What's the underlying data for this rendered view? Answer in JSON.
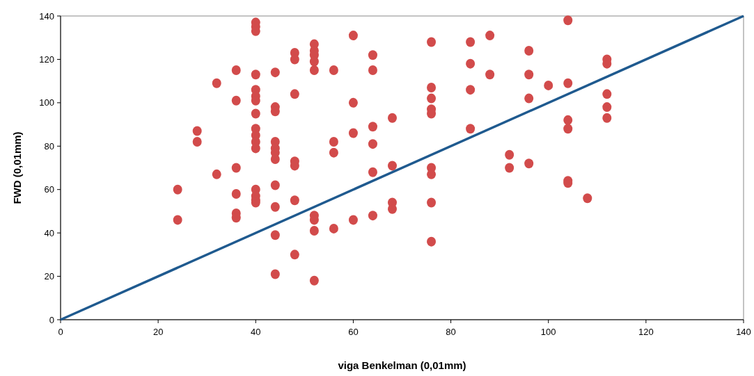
{
  "chart_data": {
    "type": "scatter",
    "xlabel": "viga Benkelman (0,01mm)",
    "ylabel": "FWD (0,01mm)",
    "xlim": [
      0,
      140
    ],
    "ylim": [
      0,
      140
    ],
    "xticks": [
      0,
      20,
      40,
      60,
      80,
      100,
      120,
      140
    ],
    "yticks": [
      0,
      20,
      40,
      60,
      80,
      100,
      120,
      140
    ],
    "grid": false,
    "series": [
      {
        "marker": "circle",
        "color": "#d24b4b",
        "x": [
          24,
          24,
          28,
          28,
          32,
          32,
          36,
          36,
          36,
          36,
          36,
          36,
          40,
          40,
          40,
          40,
          40,
          40,
          40,
          40,
          40,
          40,
          40,
          40,
          40,
          40,
          40,
          40,
          44,
          44,
          44,
          44,
          44,
          44,
          44,
          44,
          44,
          44,
          44,
          48,
          48,
          48,
          48,
          48,
          48,
          48,
          52,
          52,
          52,
          52,
          52,
          52,
          52,
          52,
          52,
          56,
          56,
          56,
          56,
          60,
          60,
          60,
          60,
          64,
          64,
          64,
          64,
          64,
          64,
          68,
          68,
          68,
          68,
          76,
          76,
          76,
          76,
          76,
          76,
          76,
          76,
          76,
          84,
          84,
          84,
          84,
          88,
          88,
          92,
          92,
          96,
          96,
          96,
          96,
          100,
          104,
          104,
          104,
          104,
          104,
          104,
          108,
          112,
          112,
          112,
          112,
          112
        ],
        "values": [
          60,
          46,
          87,
          82,
          109,
          67,
          115,
          101,
          70,
          58,
          49,
          47,
          137,
          135,
          133,
          113,
          106,
          103,
          101,
          95,
          88,
          85,
          82,
          79,
          60,
          57,
          55,
          54,
          114,
          98,
          96,
          82,
          79,
          77,
          74,
          62,
          52,
          39,
          21,
          123,
          120,
          104,
          73,
          71,
          55,
          30,
          127,
          124,
          122,
          119,
          115,
          48,
          46,
          41,
          18,
          115,
          82,
          77,
          42,
          131,
          100,
          86,
          46,
          122,
          115,
          89,
          81,
          68,
          48,
          93,
          71,
          54,
          51,
          128,
          107,
          102,
          97,
          95,
          70,
          67,
          54,
          36,
          128,
          118,
          106,
          88,
          131,
          113,
          76,
          70,
          124,
          113,
          102,
          72,
          108,
          138,
          109,
          92,
          88,
          64,
          63,
          56,
          120,
          118,
          104,
          98,
          93
        ]
      },
      {
        "type": "line",
        "color": "#1f5a8f",
        "line_style": "solid",
        "x": [
          0,
          140
        ],
        "values": [
          0,
          140
        ]
      }
    ]
  }
}
